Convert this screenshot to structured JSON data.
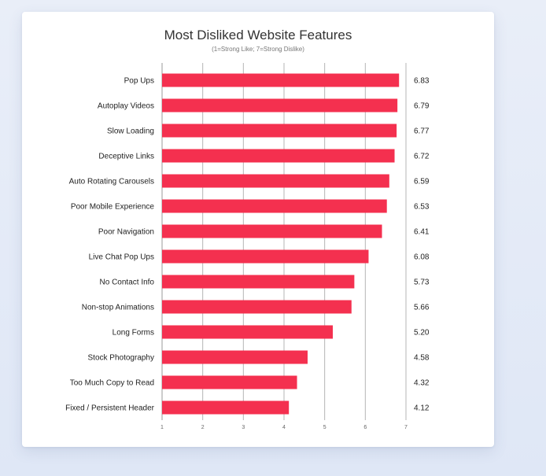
{
  "chart_data": {
    "type": "bar",
    "orientation": "horizontal",
    "title": "Most Disliked Website Features",
    "subtitle": "(1=Strong Like; 7=Strong Dislike)",
    "categories": [
      "Pop Ups",
      "Autoplay Videos",
      "Slow Loading",
      "Deceptive Links",
      "Auto Rotating Carousels",
      "Poor Mobile Experience",
      "Poor Navigation",
      "Live Chat Pop Ups",
      "No Contact Info",
      "Non-stop Animations",
      "Long Forms",
      "Stock Photography",
      "Too Much Copy to Read",
      "Fixed / Persistent Header"
    ],
    "values": [
      6.83,
      6.79,
      6.77,
      6.72,
      6.59,
      6.53,
      6.41,
      6.08,
      5.73,
      5.66,
      5.2,
      4.58,
      4.32,
      4.12
    ],
    "value_labels": [
      "6.83",
      "6.79",
      "6.77",
      "6.72",
      "6.59",
      "6.53",
      "6.41",
      "6.08",
      "5.73",
      "5.66",
      "5.20",
      "4.58",
      "4.32",
      "4.12"
    ],
    "xlim": [
      1,
      7
    ],
    "xticks": [
      "1",
      "2",
      "3",
      "4",
      "5",
      "6",
      "7"
    ],
    "grid": true,
    "bar_color": "#f4304f"
  }
}
